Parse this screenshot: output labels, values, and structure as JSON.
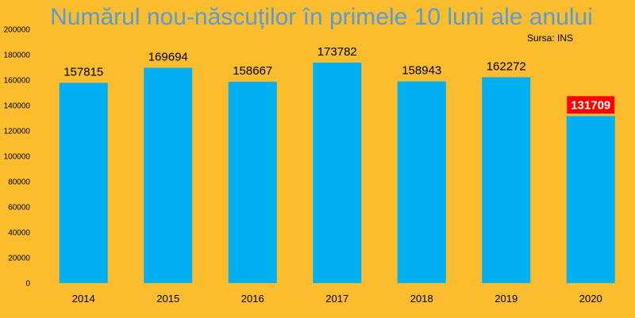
{
  "chart_data": {
    "type": "bar",
    "title": "Numărul nou-născuților în primele 10 luni ale anului",
    "source": "Sursa: INS",
    "categories": [
      "2014",
      "2015",
      "2016",
      "2017",
      "2018",
      "2019",
      "2020"
    ],
    "values": [
      157815,
      169694,
      158667,
      173782,
      158943,
      162272,
      131709
    ],
    "data_labels": [
      "157815",
      "169694",
      "158667",
      "173782",
      "158943",
      "162272",
      "131709"
    ],
    "ylim": [
      0,
      200000
    ],
    "yticks": [
      "0",
      "20000",
      "40000",
      "60000",
      "80000",
      "100000",
      "120000",
      "140000",
      "160000",
      "180000",
      "200000"
    ],
    "grid": false,
    "highlight_index": 6,
    "colors": {
      "background": "#FBBC2E",
      "bar": "#00B0F0",
      "title": "#5B9BD5",
      "highlight_label_bg": "#FF0000"
    }
  }
}
